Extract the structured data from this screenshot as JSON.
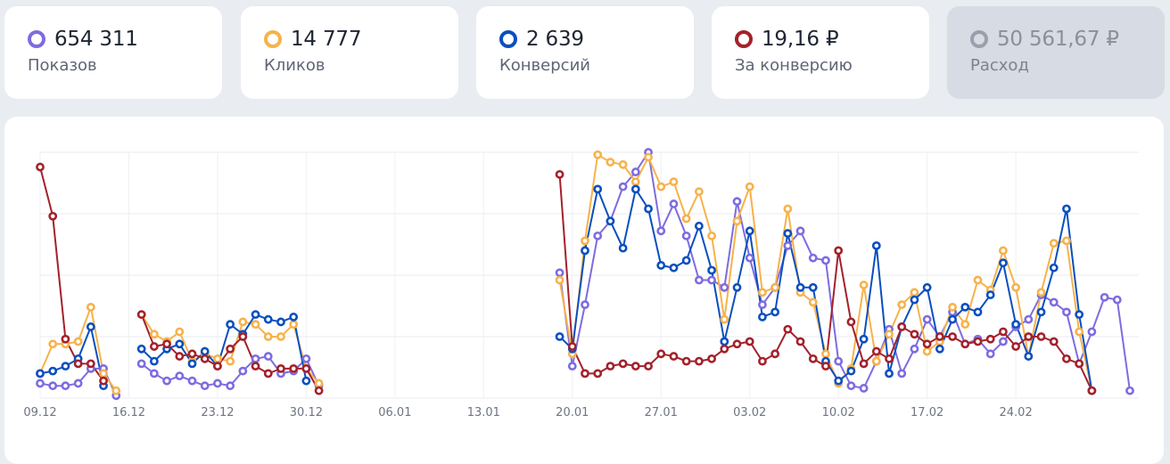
{
  "metrics": [
    {
      "value": "654 311",
      "label": "Показов",
      "color": "#7d6ce0",
      "active": false
    },
    {
      "value": "14 777",
      "label": "Кликов",
      "color": "#f7b24b",
      "active": false
    },
    {
      "value": "2 639",
      "label": "Конверсий",
      "color": "#0a4fbf",
      "active": false
    },
    {
      "value": "19,16 ₽",
      "label": "За конверсию",
      "color": "#a3212b",
      "active": false
    },
    {
      "value": "50 561,67 ₽",
      "label": "Расход",
      "color": "#9aa0ab",
      "active": true
    }
  ],
  "chart_data": {
    "type": "line",
    "x_start": "2023-12-09",
    "x_end": "2024-02-27",
    "xticks": [
      "09.12",
      "16.12",
      "23.12",
      "30.12",
      "06.01",
      "13.01",
      "20.01",
      "27.01",
      "03.02",
      "10.02",
      "17.02",
      "24.02"
    ],
    "grid": true,
    "ylim": [
      0,
      100
    ],
    "series": [
      {
        "name": "Показов",
        "color": "#7d6ce0",
        "values": [
          6,
          5,
          5,
          6,
          12,
          12,
          1,
          null,
          14,
          10,
          7,
          9,
          7,
          5,
          6,
          5,
          11,
          16,
          17,
          10,
          11,
          16,
          5,
          null,
          null,
          null,
          null,
          null,
          null,
          null,
          null,
          null,
          null,
          null,
          null,
          null,
          null,
          null,
          null,
          null,
          null,
          51,
          13,
          38,
          66,
          72,
          86,
          92,
          100,
          68,
          79,
          66,
          48,
          48,
          45,
          80,
          57,
          38,
          45,
          62,
          68,
          57,
          56,
          15,
          5,
          4,
          15,
          28,
          10,
          20,
          32,
          25,
          35,
          22,
          24,
          18,
          23,
          29,
          32,
          42,
          39,
          35,
          14,
          27,
          41,
          40,
          3
        ],
        "gaps": [
          7,
          23
        ]
      },
      {
        "name": "Кликов",
        "color": "#f7b24b",
        "values": [
          10,
          22,
          22,
          23,
          37,
          10,
          3,
          null,
          34,
          26,
          23,
          27,
          15,
          18,
          16,
          15,
          31,
          30,
          25,
          25,
          30,
          12,
          6,
          null,
          null,
          null,
          null,
          null,
          null,
          null,
          null,
          null,
          null,
          null,
          null,
          null,
          null,
          null,
          null,
          null,
          null,
          48,
          18,
          64,
          99,
          96,
          95,
          88,
          98,
          86,
          88,
          73,
          84,
          66,
          32,
          72,
          86,
          43,
          45,
          77,
          43,
          39,
          18,
          6,
          12,
          46,
          15,
          26,
          38,
          43,
          19,
          23,
          37,
          30,
          48,
          44,
          60,
          45,
          17,
          43,
          63,
          64,
          27,
          3
        ],
        "gaps": [
          7,
          23
        ]
      },
      {
        "name": "Конверсий",
        "color": "#0a4fbf",
        "values": [
          10,
          11,
          13,
          16,
          29,
          5,
          null,
          null,
          20,
          15,
          20,
          22,
          14,
          19,
          13,
          30,
          26,
          34,
          32,
          31,
          33,
          7,
          null,
          null,
          null,
          null,
          null,
          null,
          null,
          null,
          null,
          null,
          null,
          null,
          null,
          null,
          null,
          null,
          null,
          null,
          null,
          25,
          20,
          60,
          85,
          72,
          61,
          85,
          77,
          54,
          53,
          56,
          70,
          52,
          23,
          45,
          68,
          33,
          35,
          67,
          45,
          45,
          15,
          7,
          11,
          24,
          62,
          10,
          29,
          40,
          45,
          20,
          32,
          37,
          35,
          42,
          55,
          30,
          17,
          35,
          53,
          77,
          34,
          3
        ],
        "gaps": [
          6,
          23
        ]
      },
      {
        "name": "За конверсию",
        "color": "#a3212b",
        "values": [
          94,
          74,
          24,
          14,
          14,
          7,
          null,
          null,
          34,
          21,
          22,
          17,
          18,
          16,
          13,
          20,
          25,
          13,
          10,
          12,
          12,
          12,
          3,
          null,
          null,
          null,
          null,
          null,
          null,
          null,
          null,
          null,
          null,
          null,
          null,
          null,
          null,
          null,
          null,
          null,
          null,
          91,
          21,
          10,
          10,
          13,
          14,
          13,
          13,
          18,
          17,
          15,
          15,
          16,
          20,
          22,
          23,
          15,
          18,
          28,
          23,
          16,
          13,
          60,
          31,
          14,
          19,
          16,
          29,
          26,
          22,
          25,
          25,
          22,
          23,
          24,
          27,
          21,
          25,
          25,
          23,
          16,
          14,
          3
        ],
        "gaps": [
          6,
          23
        ]
      }
    ]
  }
}
